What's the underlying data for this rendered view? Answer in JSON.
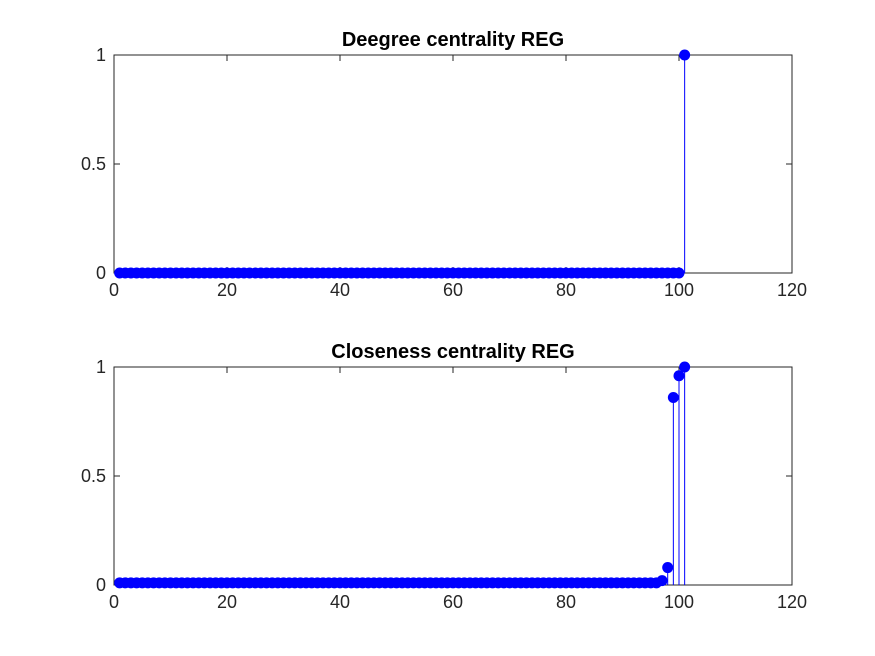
{
  "chart_data": [
    {
      "type": "stem",
      "title": "Deegree centrality REG",
      "xlabel": "",
      "ylabel": "",
      "xlim": [
        0,
        120
      ],
      "ylim": [
        0,
        1
      ],
      "xticks": [
        0,
        20,
        40,
        60,
        80,
        100,
        120
      ],
      "yticks": [
        0,
        0.5,
        1
      ],
      "xtick_labels": [
        "0",
        "20",
        "40",
        "60",
        "80",
        "100",
        "120"
      ],
      "ytick_labels": [
        "0",
        "0.5",
        "1"
      ],
      "grid": false,
      "color": "#0000FF",
      "series": [
        {
          "x_start": 1,
          "x_end": 101,
          "values": [
            0,
            0,
            0,
            0,
            0,
            0,
            0,
            0,
            0,
            0,
            0,
            0,
            0,
            0,
            0,
            0,
            0,
            0,
            0,
            0,
            0,
            0,
            0,
            0,
            0,
            0,
            0,
            0,
            0,
            0,
            0,
            0,
            0,
            0,
            0,
            0,
            0,
            0,
            0,
            0,
            0,
            0,
            0,
            0,
            0,
            0,
            0,
            0,
            0,
            0,
            0,
            0,
            0,
            0,
            0,
            0,
            0,
            0,
            0,
            0,
            0,
            0,
            0,
            0,
            0,
            0,
            0,
            0,
            0,
            0,
            0,
            0,
            0,
            0,
            0,
            0,
            0,
            0,
            0,
            0,
            0,
            0,
            0,
            0,
            0,
            0,
            0,
            0,
            0,
            0,
            0,
            0,
            0,
            0,
            0,
            0,
            0,
            0,
            0,
            0,
            1
          ]
        }
      ]
    },
    {
      "type": "stem",
      "title": "Closeness centrality REG",
      "xlabel": "",
      "ylabel": "",
      "xlim": [
        0,
        120
      ],
      "ylim": [
        0,
        1
      ],
      "xticks": [
        0,
        20,
        40,
        60,
        80,
        100,
        120
      ],
      "yticks": [
        0,
        0.5,
        1
      ],
      "xtick_labels": [
        "0",
        "20",
        "40",
        "60",
        "80",
        "100",
        "120"
      ],
      "ytick_labels": [
        "0",
        "0.5",
        "1"
      ],
      "grid": false,
      "color": "#0000FF",
      "series": [
        {
          "x_start": 1,
          "x_end": 101,
          "values": [
            0.01,
            0.01,
            0.01,
            0.01,
            0.01,
            0.01,
            0.01,
            0.01,
            0.01,
            0.01,
            0.01,
            0.01,
            0.01,
            0.01,
            0.01,
            0.01,
            0.01,
            0.01,
            0.01,
            0.01,
            0.01,
            0.01,
            0.01,
            0.01,
            0.01,
            0.01,
            0.01,
            0.01,
            0.01,
            0.01,
            0.01,
            0.01,
            0.01,
            0.01,
            0.01,
            0.01,
            0.01,
            0.01,
            0.01,
            0.01,
            0.01,
            0.01,
            0.01,
            0.01,
            0.01,
            0.01,
            0.01,
            0.01,
            0.01,
            0.01,
            0.01,
            0.01,
            0.01,
            0.01,
            0.01,
            0.01,
            0.01,
            0.01,
            0.01,
            0.01,
            0.01,
            0.01,
            0.01,
            0.01,
            0.01,
            0.01,
            0.01,
            0.01,
            0.01,
            0.01,
            0.01,
            0.01,
            0.01,
            0.01,
            0.01,
            0.01,
            0.01,
            0.01,
            0.01,
            0.01,
            0.01,
            0.01,
            0.01,
            0.01,
            0.01,
            0.01,
            0.01,
            0.01,
            0.01,
            0.01,
            0.01,
            0.01,
            0.01,
            0.01,
            0.01,
            0.01,
            0.02,
            0.08,
            0.86,
            0.96,
            1.0
          ]
        }
      ]
    }
  ]
}
